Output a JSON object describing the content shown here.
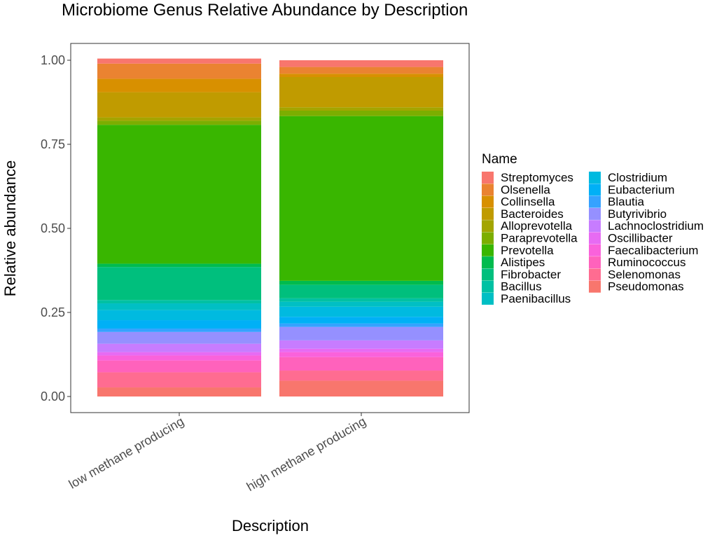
{
  "chart_data": {
    "type": "bar",
    "stacked": true,
    "title": "Microbiome Genus Relative Abundance by Description",
    "xlabel": "Description",
    "ylabel": "Relative abundance",
    "ylim": [
      0,
      1
    ],
    "yticks": [
      0.0,
      0.25,
      0.5,
      0.75,
      1.0
    ],
    "ytick_labels": [
      "0.00",
      "0.25",
      "0.50",
      "0.75",
      "1.00"
    ],
    "categories": [
      "low methane producing",
      "high methane producing"
    ],
    "legend_title": "Name",
    "legend_position": "right",
    "grid": false,
    "series": [
      {
        "name": "Streptomyces",
        "color": "#F8766D",
        "values": [
          0.015,
          0.02
        ]
      },
      {
        "name": "Olsenella",
        "color": "#EA8331",
        "values": [
          0.045,
          0.02
        ]
      },
      {
        "name": "Collinsella",
        "color": "#D89000",
        "values": [
          0.04,
          0.01
        ]
      },
      {
        "name": "Bacteroides",
        "color": "#C09B00",
        "values": [
          0.075,
          0.09
        ]
      },
      {
        "name": "Alloprevotella",
        "color": "#A3A500",
        "values": [
          0.01,
          0.01
        ]
      },
      {
        "name": "Paraprevotella",
        "color": "#7CAE00",
        "values": [
          0.012,
          0.016
        ]
      },
      {
        "name": "Prevotella",
        "color": "#39B600",
        "values": [
          0.413,
          0.49
        ]
      },
      {
        "name": "Alistipes",
        "color": "#00BB4E",
        "values": [
          0.01,
          0.012
        ]
      },
      {
        "name": "Fibrobacter",
        "color": "#00BF7D",
        "values": [
          0.098,
          0.04
        ]
      },
      {
        "name": "Bacillus",
        "color": "#00C1A3",
        "values": [
          0.01,
          0.01
        ]
      },
      {
        "name": "Paenibacillus",
        "color": "#00BFC4",
        "values": [
          0.02,
          0.015
        ]
      },
      {
        "name": "Clostridium",
        "color": "#00BAE0",
        "values": [
          0.03,
          0.03
        ]
      },
      {
        "name": "Eubacterium",
        "color": "#00B0F6",
        "values": [
          0.025,
          0.02
        ]
      },
      {
        "name": "Blautia",
        "color": "#35A2FF",
        "values": [
          0.01,
          0.01
        ]
      },
      {
        "name": "Butyrivibrio",
        "color": "#9590FF",
        "values": [
          0.035,
          0.04
        ]
      },
      {
        "name": "Lachnoclostridium",
        "color": "#C77CFF",
        "values": [
          0.025,
          0.025
        ]
      },
      {
        "name": "Oscillibacter",
        "color": "#E76BF3",
        "values": [
          0.01,
          0.01
        ]
      },
      {
        "name": "Faecalibacterium",
        "color": "#FA62DB",
        "values": [
          0.015,
          0.015
        ]
      },
      {
        "name": "Ruminococcus",
        "color": "#FF62BC",
        "values": [
          0.035,
          0.04
        ]
      },
      {
        "name": "Selenomonas",
        "color": "#FF6C91",
        "values": [
          0.045,
          0.03
        ]
      },
      {
        "name": "Pseudomonas",
        "color": "#F8766D",
        "values": [
          0.027,
          0.047
        ]
      }
    ]
  }
}
